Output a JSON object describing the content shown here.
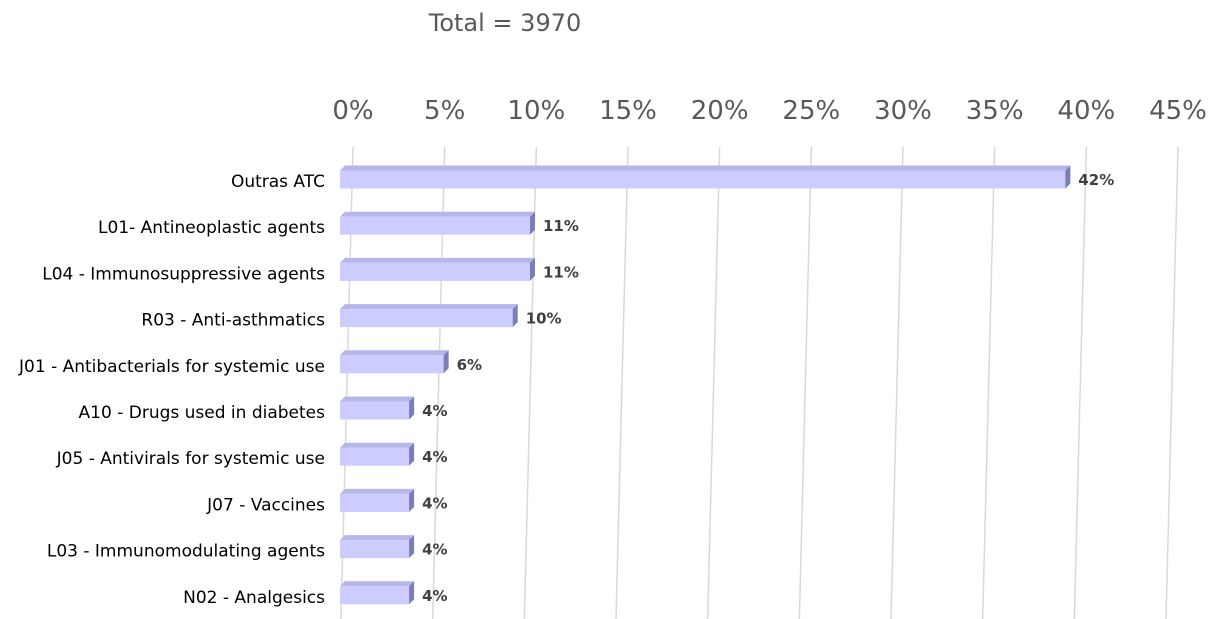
{
  "title": "Total = 3970",
  "chart_data": {
    "type": "bar",
    "orientation": "horizontal",
    "title": "Total = 3970",
    "xlabel": "",
    "ylabel": "",
    "xlim": [
      0,
      45
    ],
    "x_ticks": [
      "0%",
      "5%",
      "10%",
      "15%",
      "20%",
      "25%",
      "30%",
      "35%",
      "40%",
      "45%"
    ],
    "grid": "vertical",
    "categories": [
      "Outras ATC",
      "L01- Antineoplastic agents",
      "L04 - Immunosuppressive agents",
      "R03 - Anti-asthmatics",
      "J01 - Antibacterials for systemic use",
      "A10 - Drugs used in diabetes",
      "J05 - Antivirals for systemic use",
      "J07 - Vaccines",
      "L03 - Immunomodulating agents",
      "N02 - Analgesics"
    ],
    "values": [
      42,
      11,
      11,
      10,
      6,
      4,
      4,
      4,
      4,
      4
    ],
    "data_labels": [
      "42%",
      "11%",
      "11%",
      "10%",
      "6%",
      "4%",
      "4%",
      "4%",
      "4%",
      "4%"
    ],
    "colors": {
      "bar": "#ccccff",
      "bar_edge": "#9a9ad6",
      "grid": "#d9d9d9"
    }
  }
}
